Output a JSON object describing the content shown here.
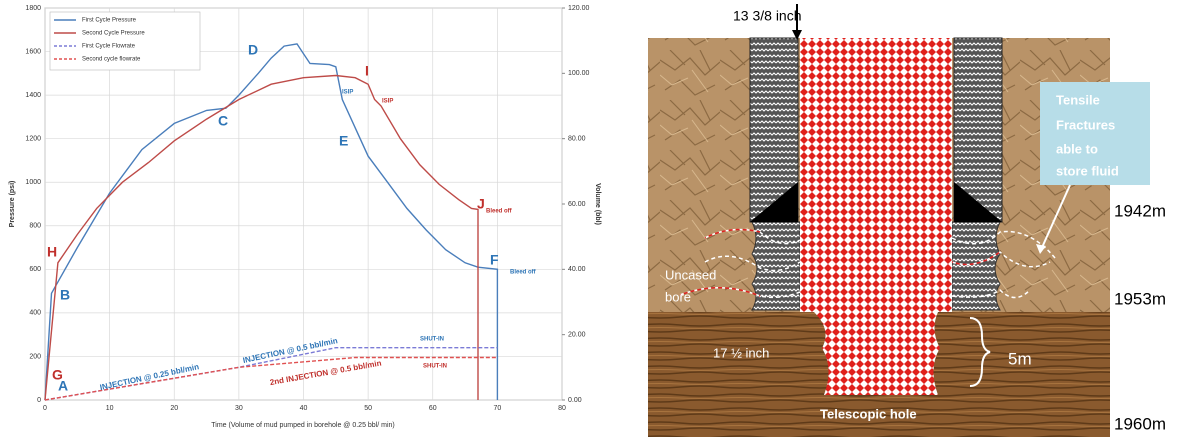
{
  "chart_data": {
    "type": "line",
    "x_label": "Time (Volume of mud pumped in borehole @ 0.25 bbl/ min)",
    "y_label": "Pressure (psi)",
    "y2_label": "Volume (bbl)",
    "xlim": [
      0,
      80
    ],
    "xticks": [
      0,
      10,
      20,
      30,
      40,
      50,
      60,
      70,
      80
    ],
    "ylim": [
      0,
      1800
    ],
    "yticks": [
      0,
      200,
      400,
      600,
      800,
      1000,
      1200,
      1400,
      1600,
      1800
    ],
    "y2lim": [
      0,
      120
    ],
    "y2ticks": [
      {
        "value": 0,
        "label": "0.00"
      },
      {
        "value": 20,
        "label": "20.00"
      },
      {
        "value": 40,
        "label": "40.00"
      },
      {
        "value": 60,
        "label": "60.00"
      },
      {
        "value": 80,
        "label": "80.00"
      },
      {
        "value": 100,
        "label": "100.00"
      },
      {
        "value": 120,
        "label": "120.00"
      }
    ],
    "grid": true,
    "legend": "upper left",
    "series": [
      {
        "name": "First Cycle Pressure",
        "color": "#4a7ebb",
        "dash": false,
        "x": [
          0,
          1,
          5,
          10,
          15,
          20,
          25,
          28,
          30,
          33,
          35,
          37,
          39,
          40,
          41,
          44,
          45,
          46,
          48,
          50,
          53,
          56,
          59,
          62,
          65,
          67,
          70,
          70
        ],
        "values": [
          0,
          490,
          700,
          950,
          1150,
          1270,
          1330,
          1340,
          1400,
          1500,
          1570,
          1625,
          1635,
          1590,
          1545,
          1540,
          1530,
          1380,
          1250,
          1120,
          1000,
          880,
          780,
          690,
          630,
          610,
          600,
          0
        ]
      },
      {
        "name": "Second Cycle Pressure",
        "color": "#be4b48",
        "dash": false,
        "x": [
          0,
          2,
          5,
          8,
          12,
          16,
          20,
          25,
          30,
          35,
          40,
          45,
          48,
          50,
          51,
          52,
          55,
          58,
          61,
          64,
          66,
          67,
          67
        ],
        "values": [
          0,
          630,
          760,
          880,
          1000,
          1090,
          1190,
          1290,
          1380,
          1450,
          1480,
          1490,
          1480,
          1450,
          1380,
          1350,
          1200,
          1080,
          990,
          920,
          880,
          875,
          0
        ]
      },
      {
        "name": "First Cycle Flowrate",
        "color": "#7b7bd6",
        "dash": true,
        "axis": "y2",
        "x": [
          0,
          30,
          45,
          70
        ],
        "values": [
          0,
          10,
          16,
          16
        ]
      },
      {
        "name": "Second cycle flowrate",
        "color": "#e05050",
        "dash": true,
        "axis": "y2",
        "x": [
          0,
          30,
          48,
          70
        ],
        "values": [
          0,
          10,
          13,
          13
        ]
      }
    ],
    "annotations": [
      {
        "text": "A",
        "color": "#2e75b6"
      },
      {
        "text": "B",
        "color": "#2e75b6"
      },
      {
        "text": "C",
        "color": "#2e75b6"
      },
      {
        "text": "D",
        "color": "#2e75b6"
      },
      {
        "text": "E",
        "color": "#2e75b6"
      },
      {
        "text": "F",
        "color": "#2e75b6"
      },
      {
        "text": "G",
        "color": "#c0302c"
      },
      {
        "text": "H",
        "color": "#c0302c"
      },
      {
        "text": "I",
        "color": "#c0302c"
      },
      {
        "text": "J",
        "color": "#c0302c"
      },
      {
        "text": "ISIP",
        "color": "#2e75b6"
      },
      {
        "text": "ISIP",
        "color": "#c0302c"
      },
      {
        "text": "Bleed off",
        "color": "#c0302c"
      },
      {
        "text": "Bleed off",
        "color": "#2e75b6"
      },
      {
        "text": "SHUT-IN",
        "color": "#2e75b6"
      },
      {
        "text": "SHUT-IN",
        "color": "#c0302c"
      },
      {
        "text": "INJECTION @ 0.25 bbl/min",
        "color": "#2e75b6"
      },
      {
        "text": "INJECTION @ 0.5 bbl/min",
        "color": "#2e75b6"
      },
      {
        "text": "2nd INJECTION @ 0.5 bbl/min",
        "color": "#c0302c"
      }
    ]
  },
  "diagram": {
    "casing_size": "13 3/8 inch",
    "callout": [
      "Tensile",
      "Fractures",
      "able to",
      "store fluid"
    ],
    "uncased": [
      "Uncased",
      "bore"
    ],
    "hole_size": "17 ½ inch",
    "length": "5m",
    "hole_name": "Telescopic hole",
    "depths": [
      "1942m",
      "1953m",
      "1960m"
    ]
  }
}
